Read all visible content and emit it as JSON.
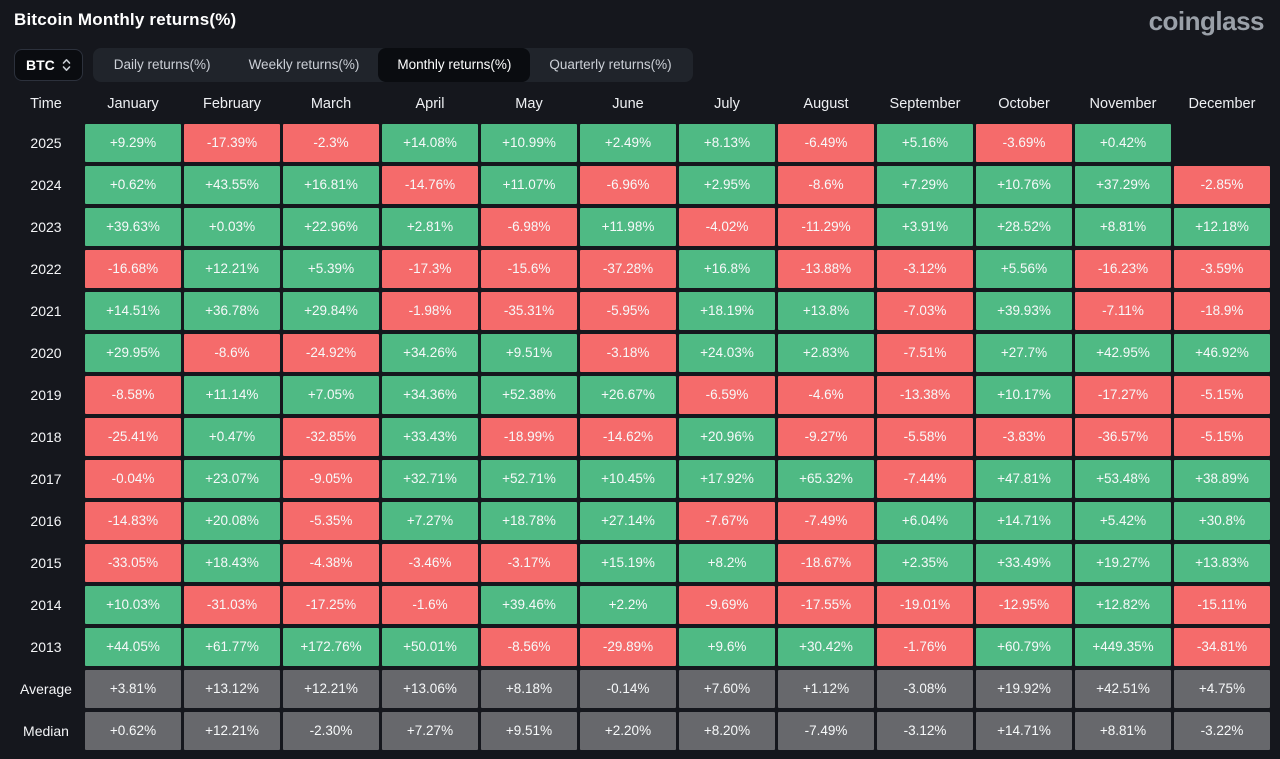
{
  "header": {
    "title": "Bitcoin Monthly returns(%)",
    "logo": "coinglass"
  },
  "controls": {
    "symbol_select": {
      "value": "BTC"
    },
    "tabs": [
      {
        "label": "Daily returns(%)",
        "active": false
      },
      {
        "label": "Weekly returns(%)",
        "active": false
      },
      {
        "label": "Monthly returns(%)",
        "active": true
      },
      {
        "label": "Quarterly returns(%)",
        "active": false
      }
    ]
  },
  "colors": {
    "positive": "#4fba84",
    "negative": "#f56b6b",
    "summary": "#67686c",
    "background": "#15171d"
  },
  "chart_data": {
    "type": "heatmap",
    "title": "Bitcoin Monthly returns(%)",
    "columns": [
      "Time",
      "January",
      "February",
      "March",
      "April",
      "May",
      "June",
      "July",
      "August",
      "September",
      "October",
      "November",
      "December"
    ],
    "rows": [
      {
        "label": "2025",
        "summary": false,
        "values": [
          "+9.29%",
          "-17.39%",
          "-2.3%",
          "+14.08%",
          "+10.99%",
          "+2.49%",
          "+8.13%",
          "-6.49%",
          "+5.16%",
          "-3.69%",
          "+0.42%",
          ""
        ]
      },
      {
        "label": "2024",
        "summary": false,
        "values": [
          "+0.62%",
          "+43.55%",
          "+16.81%",
          "-14.76%",
          "+11.07%",
          "-6.96%",
          "+2.95%",
          "-8.6%",
          "+7.29%",
          "+10.76%",
          "+37.29%",
          "-2.85%"
        ]
      },
      {
        "label": "2023",
        "summary": false,
        "values": [
          "+39.63%",
          "+0.03%",
          "+22.96%",
          "+2.81%",
          "-6.98%",
          "+11.98%",
          "-4.02%",
          "-11.29%",
          "+3.91%",
          "+28.52%",
          "+8.81%",
          "+12.18%"
        ]
      },
      {
        "label": "2022",
        "summary": false,
        "values": [
          "-16.68%",
          "+12.21%",
          "+5.39%",
          "-17.3%",
          "-15.6%",
          "-37.28%",
          "+16.8%",
          "-13.88%",
          "-3.12%",
          "+5.56%",
          "-16.23%",
          "-3.59%"
        ]
      },
      {
        "label": "2021",
        "summary": false,
        "values": [
          "+14.51%",
          "+36.78%",
          "+29.84%",
          "-1.98%",
          "-35.31%",
          "-5.95%",
          "+18.19%",
          "+13.8%",
          "-7.03%",
          "+39.93%",
          "-7.11%",
          "-18.9%"
        ]
      },
      {
        "label": "2020",
        "summary": false,
        "values": [
          "+29.95%",
          "-8.6%",
          "-24.92%",
          "+34.26%",
          "+9.51%",
          "-3.18%",
          "+24.03%",
          "+2.83%",
          "-7.51%",
          "+27.7%",
          "+42.95%",
          "+46.92%"
        ]
      },
      {
        "label": "2019",
        "summary": false,
        "values": [
          "-8.58%",
          "+11.14%",
          "+7.05%",
          "+34.36%",
          "+52.38%",
          "+26.67%",
          "-6.59%",
          "-4.6%",
          "-13.38%",
          "+10.17%",
          "-17.27%",
          "-5.15%"
        ]
      },
      {
        "label": "2018",
        "summary": false,
        "values": [
          "-25.41%",
          "+0.47%",
          "-32.85%",
          "+33.43%",
          "-18.99%",
          "-14.62%",
          "+20.96%",
          "-9.27%",
          "-5.58%",
          "-3.83%",
          "-36.57%",
          "-5.15%"
        ]
      },
      {
        "label": "2017",
        "summary": false,
        "values": [
          "-0.04%",
          "+23.07%",
          "-9.05%",
          "+32.71%",
          "+52.71%",
          "+10.45%",
          "+17.92%",
          "+65.32%",
          "-7.44%",
          "+47.81%",
          "+53.48%",
          "+38.89%"
        ]
      },
      {
        "label": "2016",
        "summary": false,
        "values": [
          "-14.83%",
          "+20.08%",
          "-5.35%",
          "+7.27%",
          "+18.78%",
          "+27.14%",
          "-7.67%",
          "-7.49%",
          "+6.04%",
          "+14.71%",
          "+5.42%",
          "+30.8%"
        ]
      },
      {
        "label": "2015",
        "summary": false,
        "values": [
          "-33.05%",
          "+18.43%",
          "-4.38%",
          "-3.46%",
          "-3.17%",
          "+15.19%",
          "+8.2%",
          "-18.67%",
          "+2.35%",
          "+33.49%",
          "+19.27%",
          "+13.83%"
        ]
      },
      {
        "label": "2014",
        "summary": false,
        "values": [
          "+10.03%",
          "-31.03%",
          "-17.25%",
          "-1.6%",
          "+39.46%",
          "+2.2%",
          "-9.69%",
          "-17.55%",
          "-19.01%",
          "-12.95%",
          "+12.82%",
          "-15.11%"
        ]
      },
      {
        "label": "2013",
        "summary": false,
        "values": [
          "+44.05%",
          "+61.77%",
          "+172.76%",
          "+50.01%",
          "-8.56%",
          "-29.89%",
          "+9.6%",
          "+30.42%",
          "-1.76%",
          "+60.79%",
          "+449.35%",
          "-34.81%"
        ]
      },
      {
        "label": "Average",
        "summary": true,
        "values": [
          "+3.81%",
          "+13.12%",
          "+12.21%",
          "+13.06%",
          "+8.18%",
          "-0.14%",
          "+7.60%",
          "+1.12%",
          "-3.08%",
          "+19.92%",
          "+42.51%",
          "+4.75%"
        ]
      },
      {
        "label": "Median",
        "summary": true,
        "values": [
          "+0.62%",
          "+12.21%",
          "-2.30%",
          "+7.27%",
          "+9.51%",
          "+2.20%",
          "+8.20%",
          "-7.49%",
          "-3.12%",
          "+14.71%",
          "+8.81%",
          "-3.22%"
        ]
      }
    ]
  }
}
